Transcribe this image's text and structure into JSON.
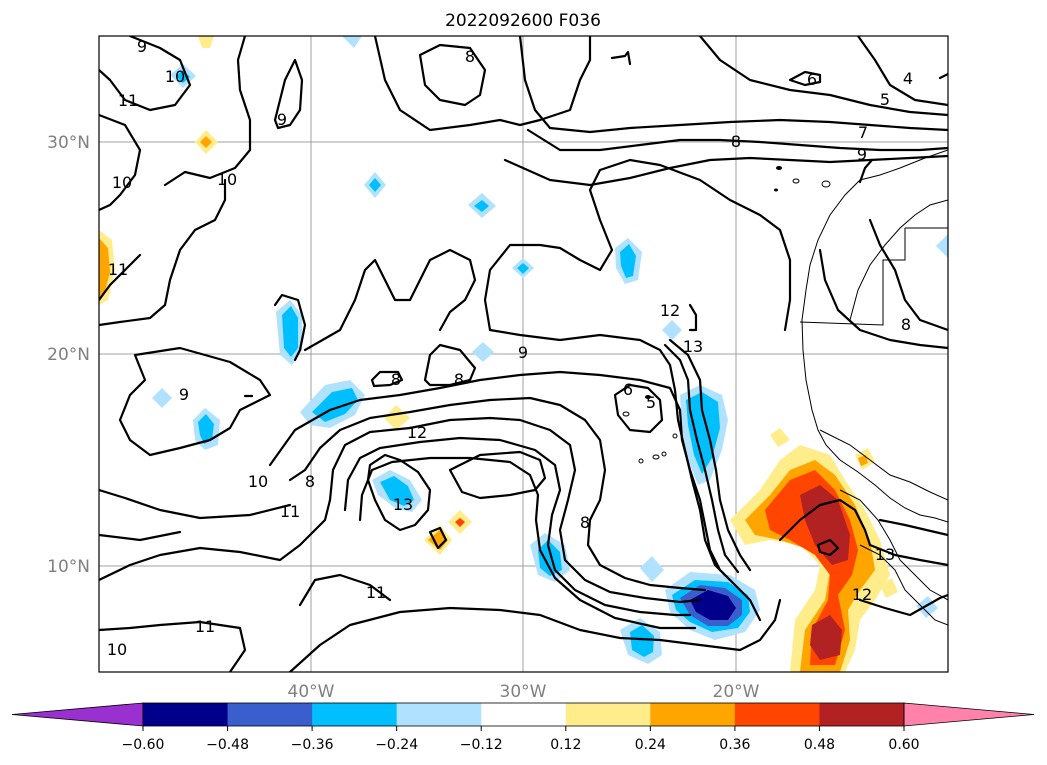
{
  "title": "2022092600 F036",
  "lat_labels": [
    "30°N",
    "20°N",
    "10°N"
  ],
  "lon_labels": [
    "40°W",
    "30°W",
    "20°W"
  ],
  "colorbar": {
    "ticks": [
      "−0.60",
      "−0.48",
      "−0.36",
      "−0.24",
      "−0.12",
      "0.12",
      "0.24",
      "0.36",
      "0.48",
      "0.60"
    ],
    "colors": [
      "#9b30d0",
      "#00008b",
      "#3a5fcd",
      "#00bfff",
      "#b0e2ff",
      "#ffffff",
      "#ffec8b",
      "#ffa500",
      "#ff4500",
      "#b22222",
      "#ff82ab"
    ]
  },
  "contour_labels": [
    "9",
    "10",
    "11",
    "11",
    "10",
    "10",
    "11",
    "9",
    "8",
    "9",
    "9",
    "8",
    "8",
    "12",
    "10",
    "11",
    "8",
    "13",
    "11",
    "11",
    "10",
    "8",
    "6",
    "5",
    "6",
    "5",
    "12",
    "13",
    "7",
    "8",
    "9",
    "4",
    "5",
    "6",
    "8",
    "9",
    "13",
    "12"
  ]
}
